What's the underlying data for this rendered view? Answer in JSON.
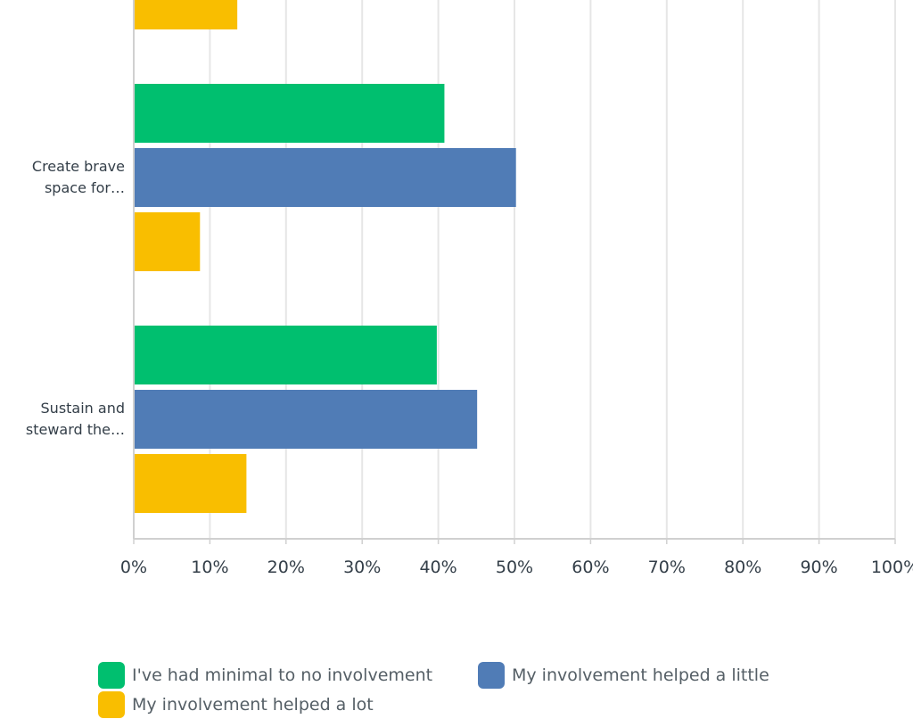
{
  "chart_data": {
    "type": "bar",
    "orientation": "horizontal",
    "categories": [
      "",
      "Create brave space for…",
      "Sustain and steward the…"
    ],
    "category_labels": [
      [
        "",
        ""
      ],
      [
        "Create brave",
        "space for…"
      ],
      [
        "Sustain and",
        "steward the…"
      ]
    ],
    "series": [
      {
        "name": "I've had minimal to no involvement",
        "color": "#00bf6f",
        "values": [
          null,
          40.8,
          39.8
        ]
      },
      {
        "name": "My involvement helped a little",
        "color": "#507cb6",
        "values": [
          null,
          50.2,
          45.1
        ]
      },
      {
        "name": "My involvement helped a lot",
        "color": "#f9be00",
        "values": [
          13.6,
          8.7,
          14.8
        ]
      }
    ],
    "xlim": [
      0,
      100
    ],
    "x_ticks": [
      "0%",
      "10%",
      "20%",
      "30%",
      "40%",
      "50%",
      "60%",
      "70%",
      "80%",
      "90%",
      "100%"
    ],
    "grid": true,
    "legend_position": "bottom"
  }
}
